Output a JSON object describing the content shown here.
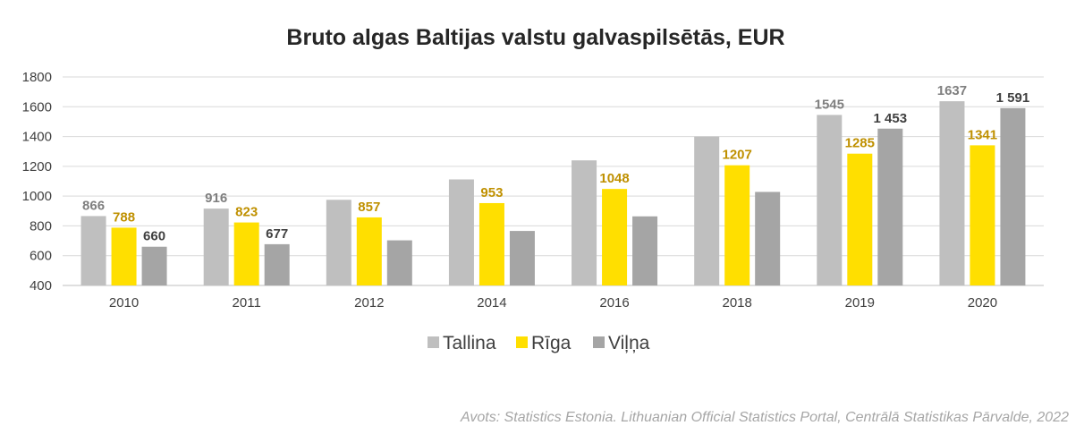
{
  "chart_data": {
    "type": "bar",
    "title": "Bruto algas Baltijas valstu galvaspilsētās, EUR",
    "source": "Avots: Statistics Estonia. Lithuanian Official Statistics Portal, Centrālā Statistikas Pārvalde, 2022",
    "categories": [
      "2010",
      "2011",
      "2012",
      "2014",
      "2016",
      "2018",
      "2019",
      "2020"
    ],
    "ylim": [
      400,
      1800
    ],
    "yticks": [
      "400",
      "600",
      "800",
      "1000",
      "1200",
      "1400",
      "1600",
      "1800"
    ],
    "grid": true,
    "legend_position": "bottom",
    "series": [
      {
        "name": "Tallina",
        "color": "#bfbfbf",
        "label_color": "#7f7f7f",
        "values": [
          866,
          916,
          975,
          1112,
          1240,
          1400,
          1545,
          1637
        ],
        "data_labels": [
          "866",
          "916",
          "",
          "",
          "",
          "",
          "1545",
          "1637"
        ],
        "label_bold": [
          true,
          true,
          false,
          false,
          false,
          false,
          false,
          false
        ]
      },
      {
        "name": "Rīga",
        "color": "#ffdf00",
        "label_color": "#bf9000",
        "values": [
          788,
          823,
          857,
          953,
          1048,
          1207,
          1285,
          1341
        ],
        "data_labels": [
          "788",
          "823",
          "857",
          "953",
          "1048",
          "1207",
          "1285",
          "1341"
        ],
        "label_bold": [
          true,
          true,
          true,
          true,
          true,
          true,
          true,
          true
        ]
      },
      {
        "name": "Viļņa",
        "color": "#a5a5a5",
        "label_color": "#404040",
        "values": [
          660,
          677,
          703,
          766,
          864,
          1028,
          1453,
          1591
        ],
        "data_labels": [
          "660",
          "677",
          "",
          "",
          "",
          "",
          "1 453",
          "1 591"
        ],
        "label_bold": [
          true,
          true,
          false,
          false,
          false,
          false,
          true,
          true
        ]
      }
    ]
  }
}
